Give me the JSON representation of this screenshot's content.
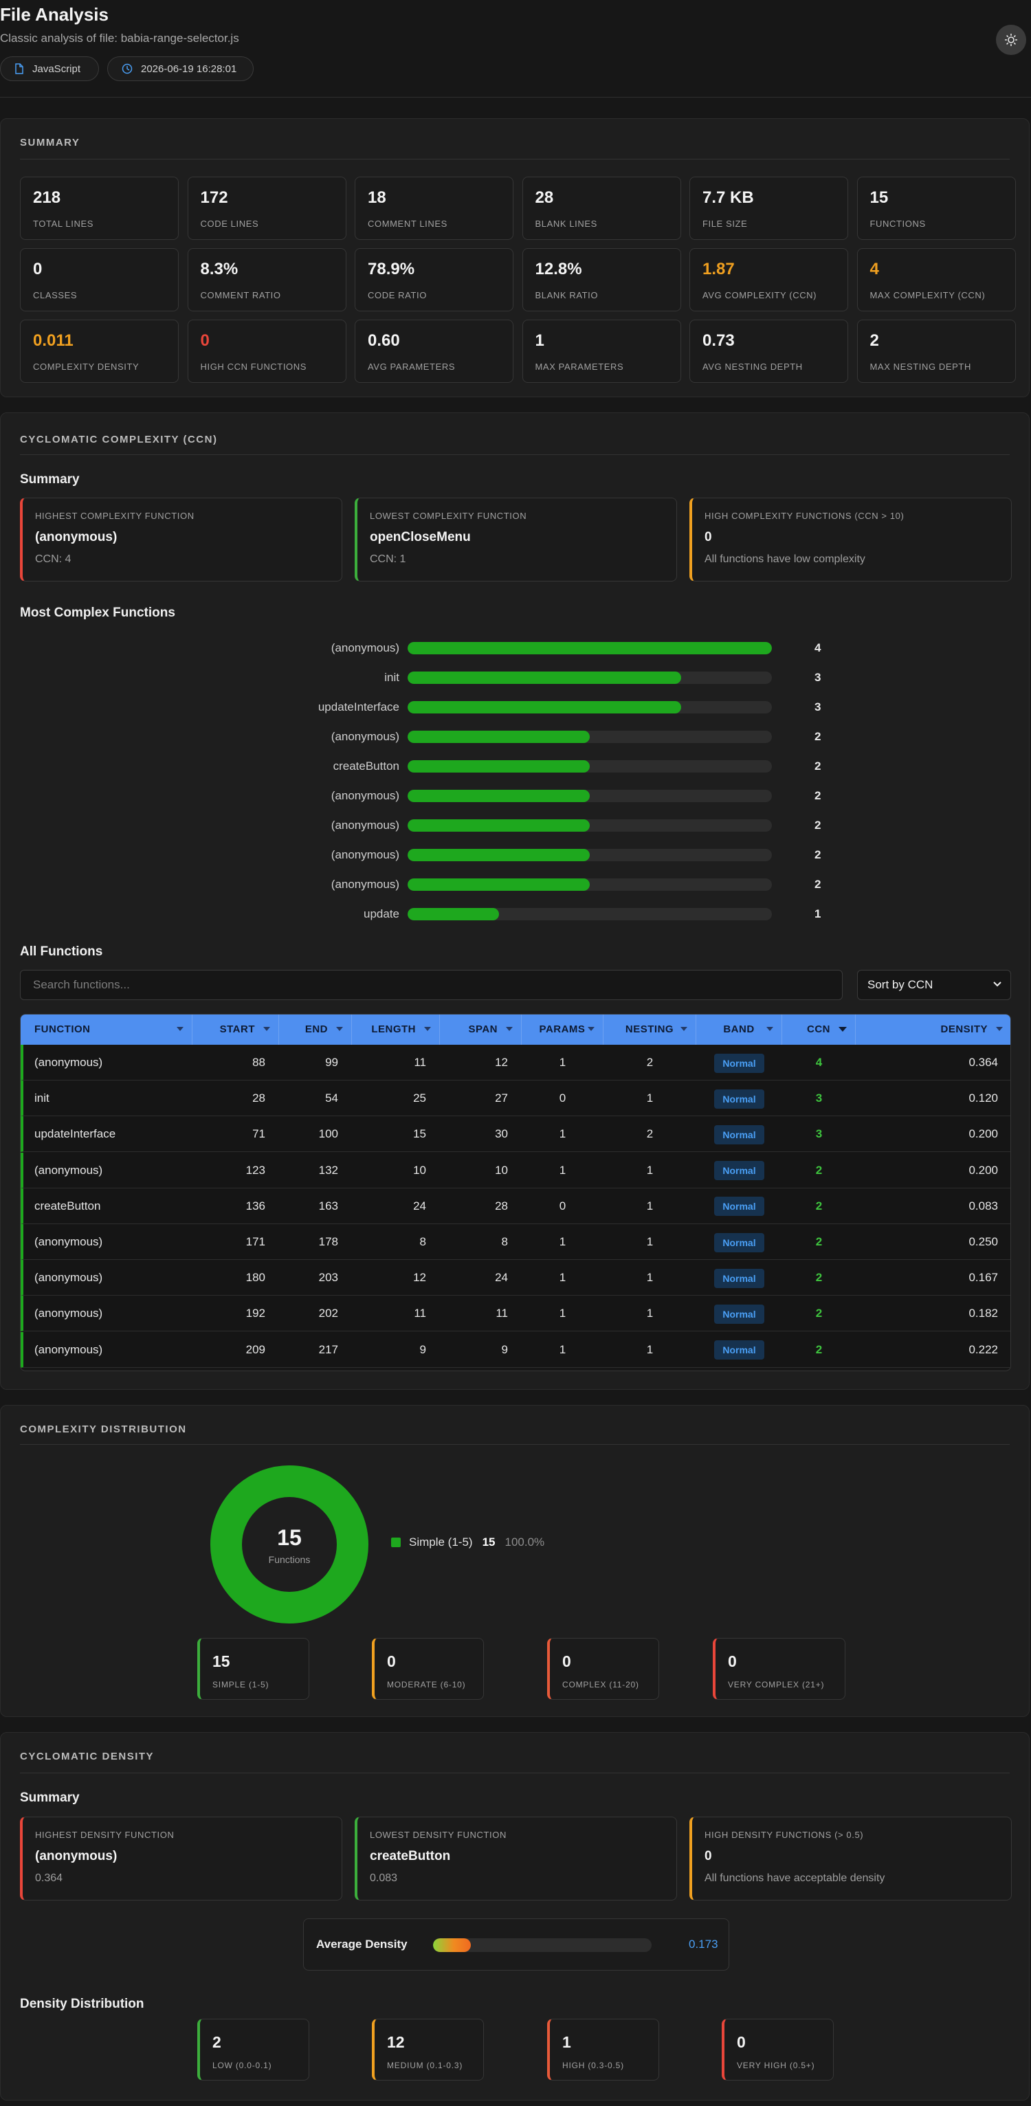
{
  "header": {
    "title": "File Analysis",
    "subtitle": "Classic analysis of file: babia-range-selector.js",
    "language": "JavaScript",
    "timestamp": "2026-06-19 16:28:01"
  },
  "summary": {
    "title": "Summary",
    "stats": [
      {
        "value": "218",
        "label": "Total Lines"
      },
      {
        "value": "172",
        "label": "Code Lines"
      },
      {
        "value": "18",
        "label": "Comment Lines"
      },
      {
        "value": "28",
        "label": "Blank Lines"
      },
      {
        "value": "7.7 KB",
        "label": "File Size"
      },
      {
        "value": "15",
        "label": "Functions"
      },
      {
        "value": "0",
        "label": "Classes"
      },
      {
        "value": "8.3%",
        "label": "Comment Ratio"
      },
      {
        "value": "78.9%",
        "label": "Code Ratio"
      },
      {
        "value": "12.8%",
        "label": "Blank Ratio"
      },
      {
        "value": "1.87",
        "label": "Avg Complexity (CCN)",
        "color": "#f0a020"
      },
      {
        "value": "4",
        "label": "Max Complexity (CCN)",
        "color": "#f0a020"
      },
      {
        "value": "0.011",
        "label": "Complexity Density",
        "color": "#f0a020"
      },
      {
        "value": "0",
        "label": "High CCN Functions",
        "color": "#e8463a"
      },
      {
        "value": "0.60",
        "label": "Avg Parameters"
      },
      {
        "value": "1",
        "label": "Max Parameters"
      },
      {
        "value": "0.73",
        "label": "Avg Nesting Depth"
      },
      {
        "value": "2",
        "label": "Max Nesting Depth"
      }
    ]
  },
  "ccn": {
    "title": "Cyclomatic Complexity (CCN)",
    "summary_heading": "Summary",
    "cards": [
      {
        "label": "Highest Complexity Function",
        "value": "(anonymous)",
        "sub": "CCN: 4"
      },
      {
        "label": "Lowest Complexity Function",
        "value": "openCloseMenu",
        "sub": "CCN: 1"
      },
      {
        "label": "High Complexity Functions (CCN > 10)",
        "value": "0",
        "sub": "All functions have low complexity"
      }
    ],
    "chart_heading": "Most Complex Functions",
    "all_functions_heading": "All Functions",
    "search_placeholder": "Search functions...",
    "sort_label": "Sort by CCN",
    "columns": [
      "Function",
      "Start",
      "End",
      "Length",
      "Span",
      "Params",
      "Nesting",
      "Band",
      "CCN",
      "Density"
    ],
    "rows": [
      [
        "(anonymous)",
        "88",
        "99",
        "11",
        "12",
        "1",
        "2",
        "Normal",
        "4",
        "0.364"
      ],
      [
        "init",
        "28",
        "54",
        "25",
        "27",
        "0",
        "1",
        "Normal",
        "3",
        "0.120"
      ],
      [
        "updateInterface",
        "71",
        "100",
        "15",
        "30",
        "1",
        "2",
        "Normal",
        "3",
        "0.200"
      ],
      [
        "(anonymous)",
        "123",
        "132",
        "10",
        "10",
        "1",
        "1",
        "Normal",
        "2",
        "0.200"
      ],
      [
        "createButton",
        "136",
        "163",
        "24",
        "28",
        "0",
        "1",
        "Normal",
        "2",
        "0.083"
      ],
      [
        "(anonymous)",
        "171",
        "178",
        "8",
        "8",
        "1",
        "1",
        "Normal",
        "2",
        "0.250"
      ],
      [
        "(anonymous)",
        "180",
        "203",
        "12",
        "24",
        "1",
        "1",
        "Normal",
        "2",
        "0.167"
      ],
      [
        "(anonymous)",
        "192",
        "202",
        "11",
        "11",
        "1",
        "1",
        "Normal",
        "2",
        "0.182"
      ],
      [
        "(anonymous)",
        "209",
        "217",
        "9",
        "9",
        "1",
        "1",
        "Normal",
        "2",
        "0.222"
      ]
    ]
  },
  "distribution": {
    "title": "Complexity Distribution",
    "total": "15",
    "total_label": "Functions",
    "legend": {
      "name": "Simple (1-5)",
      "count": "15",
      "pct": "100.0%"
    },
    "cards": [
      {
        "value": "15",
        "label": "Simple (1-5)"
      },
      {
        "value": "0",
        "label": "Moderate (6-10)"
      },
      {
        "value": "0",
        "label": "Complex (11-20)"
      },
      {
        "value": "0",
        "label": "Very Complex (21+)"
      }
    ]
  },
  "density": {
    "title": "Cyclomatic Density",
    "summary_heading": "Summary",
    "cards": [
      {
        "label": "Highest Density Function",
        "value": "(anonymous)",
        "sub": "0.364"
      },
      {
        "label": "Lowest Density Function",
        "value": "createButton",
        "sub": "0.083"
      },
      {
        "label": "High Density Functions (> 0.5)",
        "value": "0",
        "sub": "All functions have acceptable density"
      }
    ],
    "avg_label": "Average Density",
    "avg_value": "0.173",
    "dist_heading": "Density Distribution",
    "dist": [
      {
        "value": "2",
        "label": "Low (0.0-0.1)"
      },
      {
        "value": "12",
        "label": "Medium (0.1-0.3)"
      },
      {
        "value": "1",
        "label": "High (0.3-0.5)"
      },
      {
        "value": "0",
        "label": "Very High (0.5+)"
      }
    ]
  },
  "chart_data": [
    {
      "type": "bar",
      "orientation": "horizontal",
      "categories": [
        "(anonymous)",
        "init",
        "updateInterface",
        "(anonymous)",
        "createButton",
        "(anonymous)",
        "(anonymous)",
        "(anonymous)",
        "(anonymous)",
        "update"
      ],
      "values": [
        4,
        3,
        3,
        2,
        2,
        2,
        2,
        2,
        2,
        1
      ],
      "xlim": [
        0,
        4
      ],
      "color": "#1ea81e"
    },
    {
      "type": "pie",
      "categories": [
        "Simple (1-5)"
      ],
      "values": [
        15
      ],
      "color": "#1ea81e"
    }
  ],
  "colors": {
    "accent": "#4f8ff0",
    "green": "#1ea81e",
    "orange": "#f0a020",
    "red": "#e8463a"
  }
}
